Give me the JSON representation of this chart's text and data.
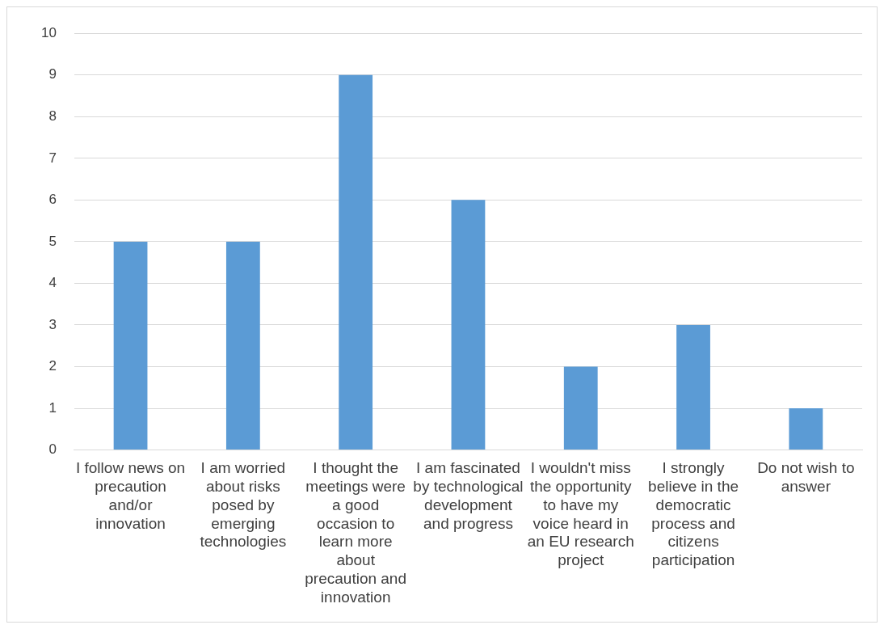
{
  "chart_data": {
    "type": "bar",
    "categories": [
      "I follow news on precaution and/or innovation",
      "I am worried about risks posed by emerging technologies",
      "I thought the meetings were a good occasion to learn more about precaution and innovation",
      "I am fascinated by technological development and progress",
      "I wouldn't miss the opportunity to have my voice heard in an EU research project",
      "I strongly believe in the democratic process and citizens participation",
      "Do not wish to answer"
    ],
    "values": [
      5,
      5,
      9,
      6,
      2,
      3,
      1
    ],
    "color": "#5b9bd5",
    "ylim": [
      0,
      10
    ],
    "yticks": [
      0,
      1,
      2,
      3,
      4,
      5,
      6,
      7,
      8,
      9,
      10
    ],
    "grid": "y",
    "legend": false
  }
}
